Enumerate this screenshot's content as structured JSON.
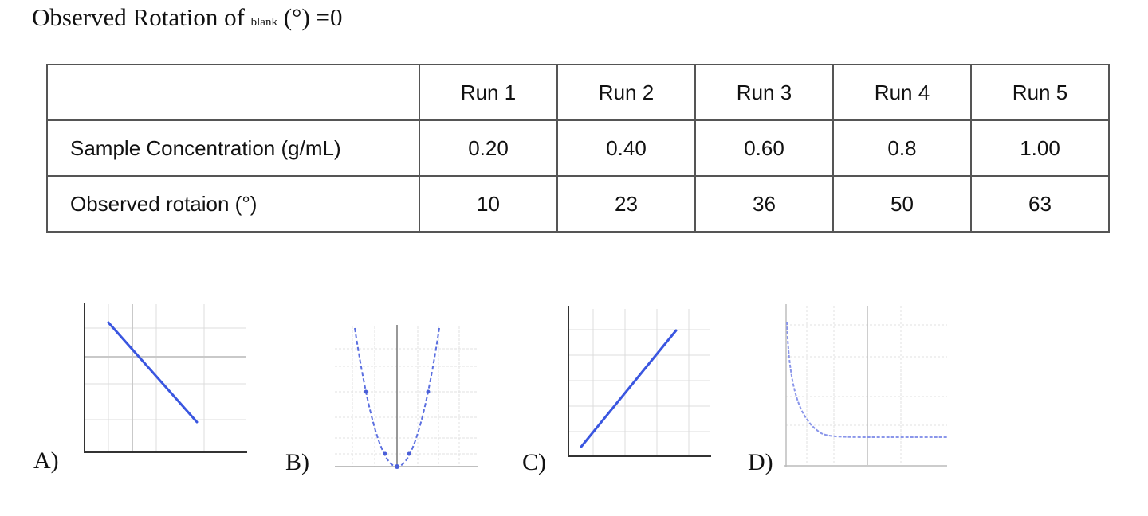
{
  "heading": {
    "prefix": "Observed Rotation of ",
    "subscript": "blank",
    "suffix": " (°) =0"
  },
  "table": {
    "columns": [
      "",
      "Run 1",
      "Run 2",
      "Run 3",
      "Run 4",
      "Run 5"
    ],
    "rows": [
      {
        "label": "Sample Concentration (g/mL)",
        "values": [
          "0.20",
          "0.40",
          "0.60",
          "0.8",
          "1.00"
        ]
      },
      {
        "label": "Observed rotaion (°)",
        "values": [
          "10",
          "23",
          "36",
          "50",
          "63"
        ]
      }
    ]
  },
  "options": [
    {
      "label": "A)",
      "graph": "decreasing-line",
      "color": "#3a56e0"
    },
    {
      "label": "B)",
      "graph": "parabola",
      "color": "#5b6fe0"
    },
    {
      "label": "C)",
      "graph": "increasing-line",
      "color": "#3a56e0"
    },
    {
      "label": "D)",
      "graph": "exponential-decay",
      "color": "#8a96ea"
    }
  ]
}
